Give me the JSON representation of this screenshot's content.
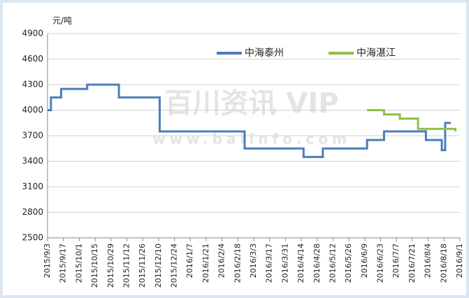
{
  "chart_data": {
    "type": "line",
    "step": "post",
    "y_label": "元/吨",
    "watermark": "百川资讯 VIP",
    "watermark_url": "www.baiinfo.com",
    "ylim": [
      2500,
      4900
    ],
    "yticks": [
      2500,
      2800,
      3100,
      3400,
      3700,
      4000,
      4300,
      4600,
      4900
    ],
    "xlim": [
      "2015/9/3",
      "2016/9/1"
    ],
    "xticks": [
      "2015/9/3",
      "2015/9/17",
      "2015/10/1",
      "2015/10/15",
      "2015/10/29",
      "2015/11/12",
      "2015/11/26",
      "2015/12/10",
      "2015/12/24",
      "2016/1/7",
      "2016/1/21",
      "2016/2/4",
      "2016/2/18",
      "2016/3/3",
      "2016/3/17",
      "2016/3/31",
      "2016/4/14",
      "2016/4/28",
      "2016/5/12",
      "2016/5/26",
      "2016/6/9",
      "2016/6/23",
      "2016/7/7",
      "2016/7/21",
      "2016/8/4",
      "2016/8/18",
      "2016/9/1"
    ],
    "grid": true,
    "x": [
      "2015/9/3",
      "2015/9/6",
      "2015/9/15",
      "2015/10/8",
      "2015/11/5",
      "2015/12/11",
      "2016/2/24",
      "2016/4/16",
      "2016/5/3",
      "2016/6/11",
      "2016/6/26",
      "2016/7/10",
      "2016/7/26",
      "2016/8/2",
      "2016/8/16",
      "2016/8/19",
      "2016/8/24",
      "2016/8/28"
    ],
    "series": [
      {
        "name": "中海泰州",
        "color": "#4a7ebb",
        "values": [
          4000,
          4150,
          4250,
          4300,
          4150,
          3750,
          3550,
          3450,
          3550,
          3650,
          3750,
          3750,
          3750,
          3650,
          3530,
          3850,
          3850,
          null
        ]
      },
      {
        "name": "中海湛江",
        "color": "#8fbf45",
        "values": [
          null,
          null,
          null,
          null,
          null,
          null,
          null,
          null,
          null,
          4000,
          3950,
          3900,
          3780,
          3780,
          3780,
          3780,
          3780,
          3750
        ]
      }
    ]
  }
}
